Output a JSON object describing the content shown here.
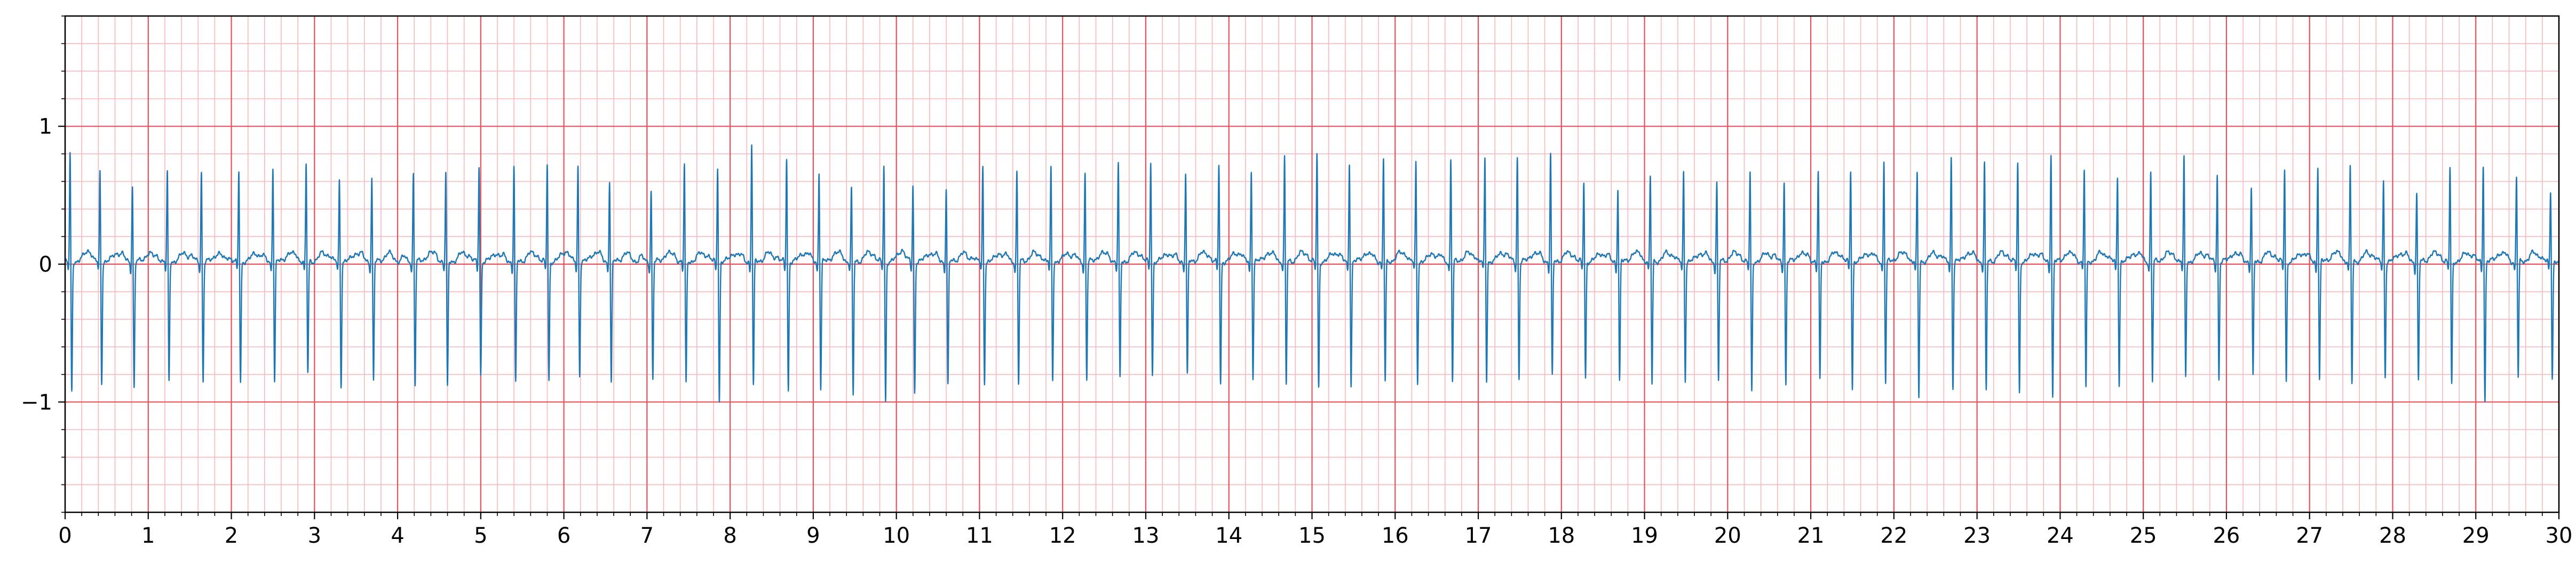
{
  "chart_data": {
    "type": "line",
    "title": "",
    "xlabel": "",
    "ylabel": "",
    "xlim": [
      0,
      30
    ],
    "ylim": [
      -1.8,
      1.8
    ],
    "x_ticks": [
      0,
      1,
      2,
      3,
      4,
      5,
      6,
      7,
      8,
      9,
      10,
      11,
      12,
      13,
      14,
      15,
      16,
      17,
      18,
      19,
      20,
      21,
      22,
      23,
      24,
      25,
      26,
      27,
      28,
      29,
      30
    ],
    "y_ticks": [
      -1,
      0,
      1
    ],
    "y_tick_labels": [
      "−1",
      "0",
      "1"
    ],
    "x_minor_step": 0.2,
    "y_minor_step": 0.2,
    "grid": true,
    "grid_major_color": "#e8505b",
    "grid_minor_color": "#f7b8bd",
    "line_color": "#1f77b4",
    "series": [
      {
        "beat_times": [
          0.06,
          0.42,
          0.81,
          1.23,
          1.64,
          2.09,
          2.5,
          2.9,
          3.3,
          3.69,
          4.19,
          4.58,
          4.98,
          5.4,
          5.8,
          6.17,
          6.55,
          7.05,
          7.45,
          7.85,
          8.26,
          8.68,
          9.07,
          9.46,
          9.85,
          10.2,
          10.6,
          11.04,
          11.45,
          11.86,
          12.27,
          12.67,
          13.06,
          13.48,
          13.88,
          14.27,
          14.67,
          15.06,
          15.45,
          15.86,
          16.25,
          16.67,
          17.08,
          17.47,
          17.87,
          18.27,
          18.68,
          19.07,
          19.47,
          19.87,
          20.27,
          20.68,
          21.09,
          21.48,
          21.88,
          22.28,
          22.69,
          23.09,
          23.49,
          23.89,
          24.29,
          24.69,
          25.09,
          25.49,
          25.89,
          26.3,
          26.7,
          27.1,
          27.49,
          27.89,
          28.29,
          28.69,
          29.09,
          29.49,
          29.9
        ],
        "r_peaks": [
          0.8,
          0.67,
          0.57,
          0.66,
          0.67,
          0.67,
          0.71,
          0.72,
          0.62,
          0.63,
          0.67,
          0.66,
          0.71,
          0.71,
          0.73,
          0.71,
          0.61,
          0.54,
          0.72,
          0.72,
          0.88,
          0.78,
          0.68,
          0.55,
          0.72,
          0.58,
          0.55,
          0.71,
          0.68,
          0.7,
          0.66,
          0.73,
          0.75,
          0.66,
          0.72,
          0.68,
          0.78,
          0.8,
          0.74,
          0.77,
          0.74,
          0.76,
          0.77,
          0.78,
          0.8,
          0.6,
          0.56,
          0.64,
          0.67,
          0.6,
          0.66,
          0.61,
          0.67,
          0.69,
          0.75,
          0.66,
          0.78,
          0.74,
          0.73,
          0.82,
          0.68,
          0.64,
          0.67,
          0.77,
          0.66,
          0.55,
          0.69,
          0.72,
          0.71,
          0.6,
          0.52,
          0.7,
          0.73,
          0.64,
          0.53
        ],
        "s_troughs": [
          -0.95,
          -0.88,
          -0.92,
          -0.88,
          -0.87,
          -0.88,
          -0.87,
          -0.82,
          -0.9,
          -0.87,
          -0.9,
          -0.92,
          -0.83,
          -0.9,
          -0.87,
          -0.83,
          -0.88,
          -0.86,
          -0.9,
          -1.02,
          -0.92,
          -0.95,
          -0.93,
          -0.98,
          -1.02,
          -0.96,
          -0.9,
          -0.88,
          -0.9,
          -0.87,
          -0.86,
          -0.86,
          -0.83,
          -0.83,
          -0.9,
          -0.85,
          -0.9,
          -0.92,
          -0.9,
          -0.88,
          -0.88,
          -0.87,
          -0.87,
          -0.85,
          -0.85,
          -0.85,
          -0.88,
          -0.9,
          -0.86,
          -0.88,
          -0.95,
          -0.9,
          -0.88,
          -0.93,
          -0.88,
          -1.0,
          -0.92,
          -0.95,
          -0.96,
          -1.0,
          -0.92,
          -0.9,
          -0.87,
          -0.85,
          -0.86,
          -0.85,
          -0.87,
          -0.87,
          -0.9,
          -0.83,
          -0.88,
          -0.9,
          -1.02,
          -0.85,
          -0.85
        ]
      }
    ]
  }
}
